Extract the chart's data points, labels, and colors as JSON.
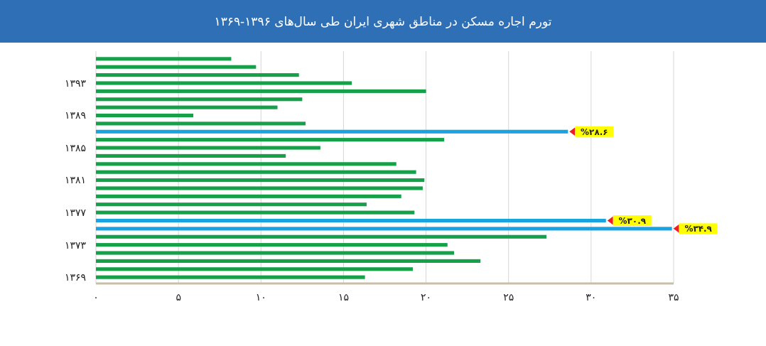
{
  "chart_data": {
    "type": "bar",
    "orientation": "horizontal",
    "title": "تورم اجاره مسکن در مناطق شهری ایران طی سال‌های ۱۳۹۶-۱۳۶۹",
    "categories": [
      null,
      null,
      null,
      "۱۳۹۳",
      null,
      null,
      null,
      "۱۳۸۹",
      null,
      null,
      null,
      "۱۳۸۵",
      null,
      null,
      null,
      "۱۳۸۱",
      null,
      null,
      null,
      "۱۳۷۷",
      null,
      null,
      null,
      "۱۳۷۳",
      null,
      null,
      null,
      "۱۳۶۹"
    ],
    "values": [
      8.2,
      9.7,
      12.3,
      15.5,
      20.0,
      12.5,
      11.0,
      5.9,
      12.7,
      28.6,
      21.1,
      13.6,
      11.5,
      18.2,
      19.4,
      19.9,
      19.8,
      18.5,
      16.4,
      19.3,
      30.9,
      34.9,
      27.3,
      21.3,
      21.7,
      23.3,
      19.2,
      16.3
    ],
    "colors": [
      "#17a04a",
      "#17a04a",
      "#17a04a",
      "#17a04a",
      "#17a04a",
      "#17a04a",
      "#17a04a",
      "#17a04a",
      "#17a04a",
      "#1aa3e0",
      "#17a04a",
      "#17a04a",
      "#17a04a",
      "#17a04a",
      "#17a04a",
      "#17a04a",
      "#17a04a",
      "#17a04a",
      "#17a04a",
      "#17a04a",
      "#1aa3e0",
      "#1aa3e0",
      "#17a04a",
      "#17a04a",
      "#17a04a",
      "#17a04a",
      "#17a04a",
      "#17a04a"
    ],
    "value_labels": [
      null,
      null,
      null,
      null,
      null,
      null,
      null,
      null,
      null,
      "%۲۸.۶",
      null,
      null,
      null,
      null,
      null,
      null,
      null,
      null,
      null,
      null,
      "%۳۰.۹",
      "%۳۴.۹",
      null,
      null,
      null,
      null,
      null,
      null
    ],
    "xlim": [
      0,
      35
    ],
    "xticks": [
      {
        "value": 0,
        "label": "۰"
      },
      {
        "value": 5,
        "label": "۵"
      },
      {
        "value": 10,
        "label": "۱۰"
      },
      {
        "value": 15,
        "label": "۱۵"
      },
      {
        "value": 20,
        "label": "۲۰"
      },
      {
        "value": 25,
        "label": "۲۵"
      },
      {
        "value": 30,
        "label": "۳۰"
      },
      {
        "value": 35,
        "label": "۳۵"
      }
    ],
    "grid": "x"
  }
}
